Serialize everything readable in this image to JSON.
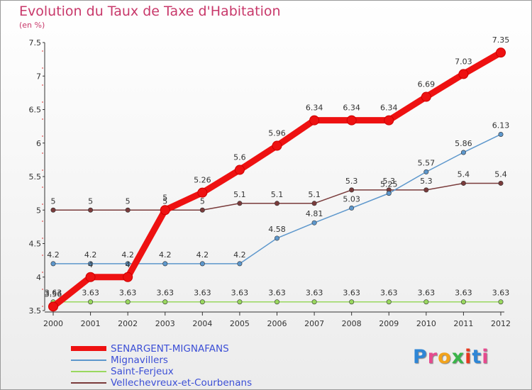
{
  "title": "Evolution du Taux de Taxe d'Habitation",
  "unit_label": "(en %)",
  "logo": "Proxiti",
  "chart_data": {
    "type": "line",
    "title": "Evolution du Taux de Taxe d'Habitation",
    "ylabel": "(en %)",
    "x": [
      2000,
      2001,
      2002,
      2003,
      2004,
      2005,
      2006,
      2007,
      2008,
      2009,
      2010,
      2011,
      2012
    ],
    "x_tick_labels": [
      "2000",
      "2001",
      "2002",
      "2003",
      "2004",
      "2005",
      "2006",
      "2007",
      "2008",
      "2009",
      "2010",
      "2011",
      "2012"
    ],
    "ylim": [
      3.5,
      7.5
    ],
    "y_ticks": [
      3.5,
      4,
      4.5,
      5,
      5.5,
      6,
      6.5,
      7,
      7.5
    ],
    "y_tick_labels": [
      "3.5",
      "4",
      "4.5",
      "5",
      "5.5",
      "6",
      "6.5",
      "7",
      "7.5"
    ],
    "grid": false,
    "legend_position": "bottom-left",
    "series": [
      {
        "name": "SENARGENT-MIGNAFANS",
        "color": "#ee1111",
        "values": [
          3.56,
          4,
          4,
          5,
          5.26,
          5.6,
          5.96,
          6.34,
          6.34,
          6.34,
          6.69,
          7.03,
          7.35
        ],
        "labels": [
          "3.56",
          "4",
          "4",
          "5",
          "5.26",
          "5.6",
          "5.96",
          "6.34",
          "6.34",
          "6.34",
          "6.69",
          "7.03",
          "7.35"
        ]
      },
      {
        "name": "Mignavillers",
        "color": "#5d97cc",
        "values": [
          4.2,
          4.2,
          4.2,
          4.2,
          4.2,
          4.2,
          4.58,
          4.81,
          5.03,
          5.25,
          5.57,
          5.86,
          6.13
        ],
        "labels": [
          "4.2",
          "4.2",
          "4.2",
          "4.2",
          "4.2",
          "4.2",
          "4.58",
          "4.81",
          "5.03",
          "5.25",
          "5.57",
          "5.86",
          "6.13"
        ]
      },
      {
        "name": "Saint-Ferjeux",
        "color": "#99d85f",
        "values": [
          3.63,
          3.63,
          3.63,
          3.63,
          3.63,
          3.63,
          3.63,
          3.63,
          3.63,
          3.63,
          3.63,
          3.63,
          3.63
        ],
        "labels": [
          "3.63",
          "3.63",
          "3.63",
          "3.63",
          "3.63",
          "3.63",
          "3.63",
          "3.63",
          "3.63",
          "3.63",
          "3.63",
          "3.63",
          "3.63"
        ]
      },
      {
        "name": "Vellechevreux-et-Courbenans",
        "color": "#7a3b3b",
        "values": [
          5,
          5,
          5,
          5,
          5,
          5.1,
          5.1,
          5.1,
          5.3,
          5.3,
          5.3,
          5.4,
          5.4
        ],
        "labels": [
          "5",
          "5",
          "5",
          "5",
          "5",
          "5.1",
          "5.1",
          "5.1",
          "5.3",
          "5.3",
          "5.3",
          "5.4",
          "5.4"
        ]
      }
    ]
  }
}
